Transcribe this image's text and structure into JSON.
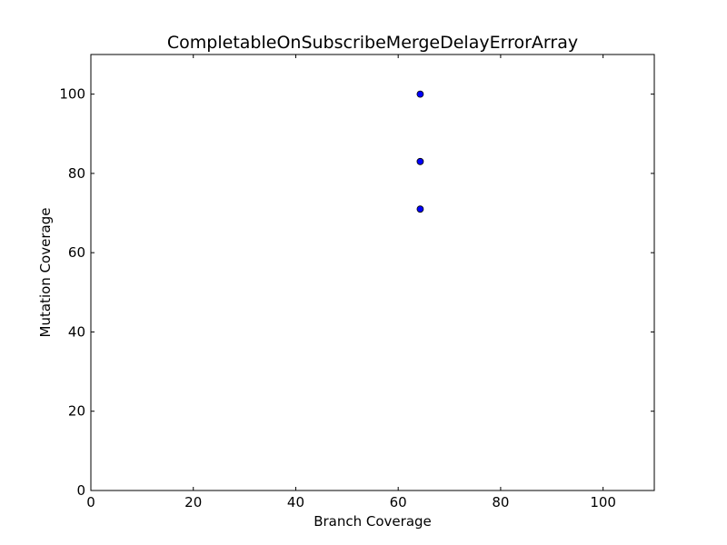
{
  "chart_data": {
    "type": "scatter",
    "title": "CompletableOnSubscribeMergeDelayErrorArray",
    "xlabel": "Branch Coverage",
    "ylabel": "Mutation Coverage",
    "xlim": [
      0,
      110
    ],
    "ylim": [
      0,
      110
    ],
    "xticks": [
      0,
      20,
      40,
      60,
      80,
      100
    ],
    "yticks": [
      0,
      20,
      40,
      60,
      80,
      100
    ],
    "grid": false,
    "marker_color": "#0000ff",
    "points": [
      {
        "x": 64.3,
        "y": 100
      },
      {
        "x": 64.3,
        "y": 83
      },
      {
        "x": 64.3,
        "y": 71
      }
    ]
  }
}
